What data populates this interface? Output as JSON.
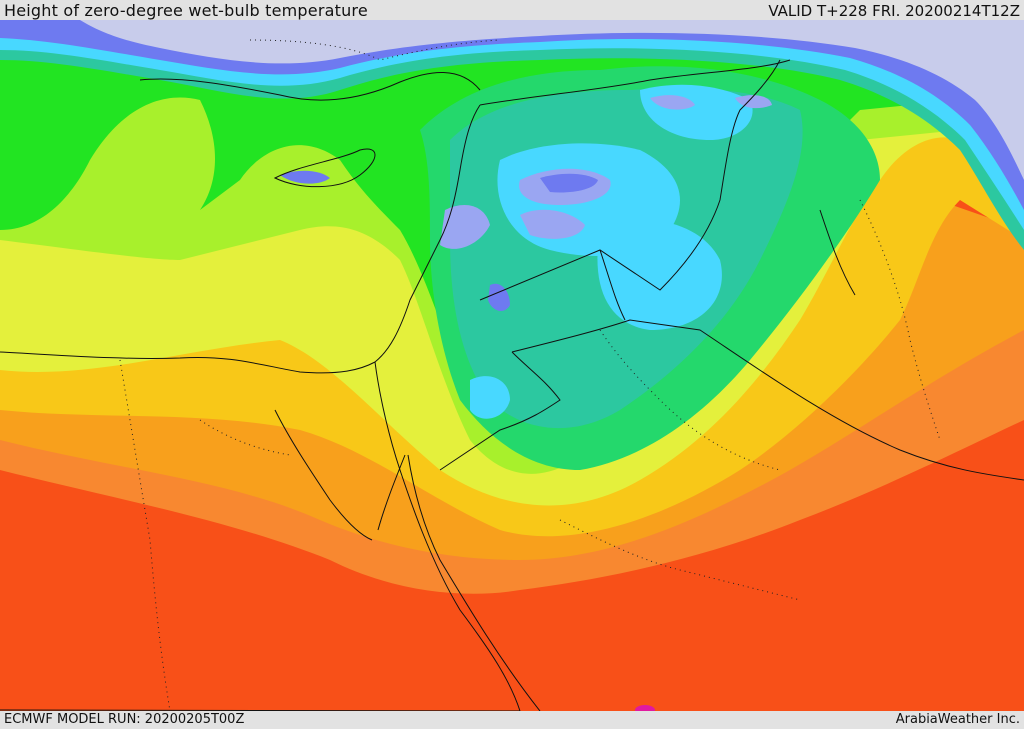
{
  "header": {
    "title": "Height of zero-degree wet-bulb temperature",
    "valid": "VALID T+228 FRI. 20200214T12Z"
  },
  "footer": {
    "model_run": "ECMWF MODEL RUN: 20200205T00Z",
    "credit": "ArabiaWeather Inc."
  },
  "palette": {
    "ice": "#c8cceb",
    "blue": "#6e7af0",
    "blue_light": "#9aa6f2",
    "cyan": "#48d8ff",
    "teal": "#2cc8a0",
    "green_dark": "#24d86c",
    "green": "#22e422",
    "lime": "#a8f02c",
    "yellow": "#e4f03c",
    "amber": "#f8c818",
    "orange": "#f8a01c",
    "orange_deep": "#f88830",
    "red": "#f85018",
    "magenta": "#e01aa0"
  }
}
